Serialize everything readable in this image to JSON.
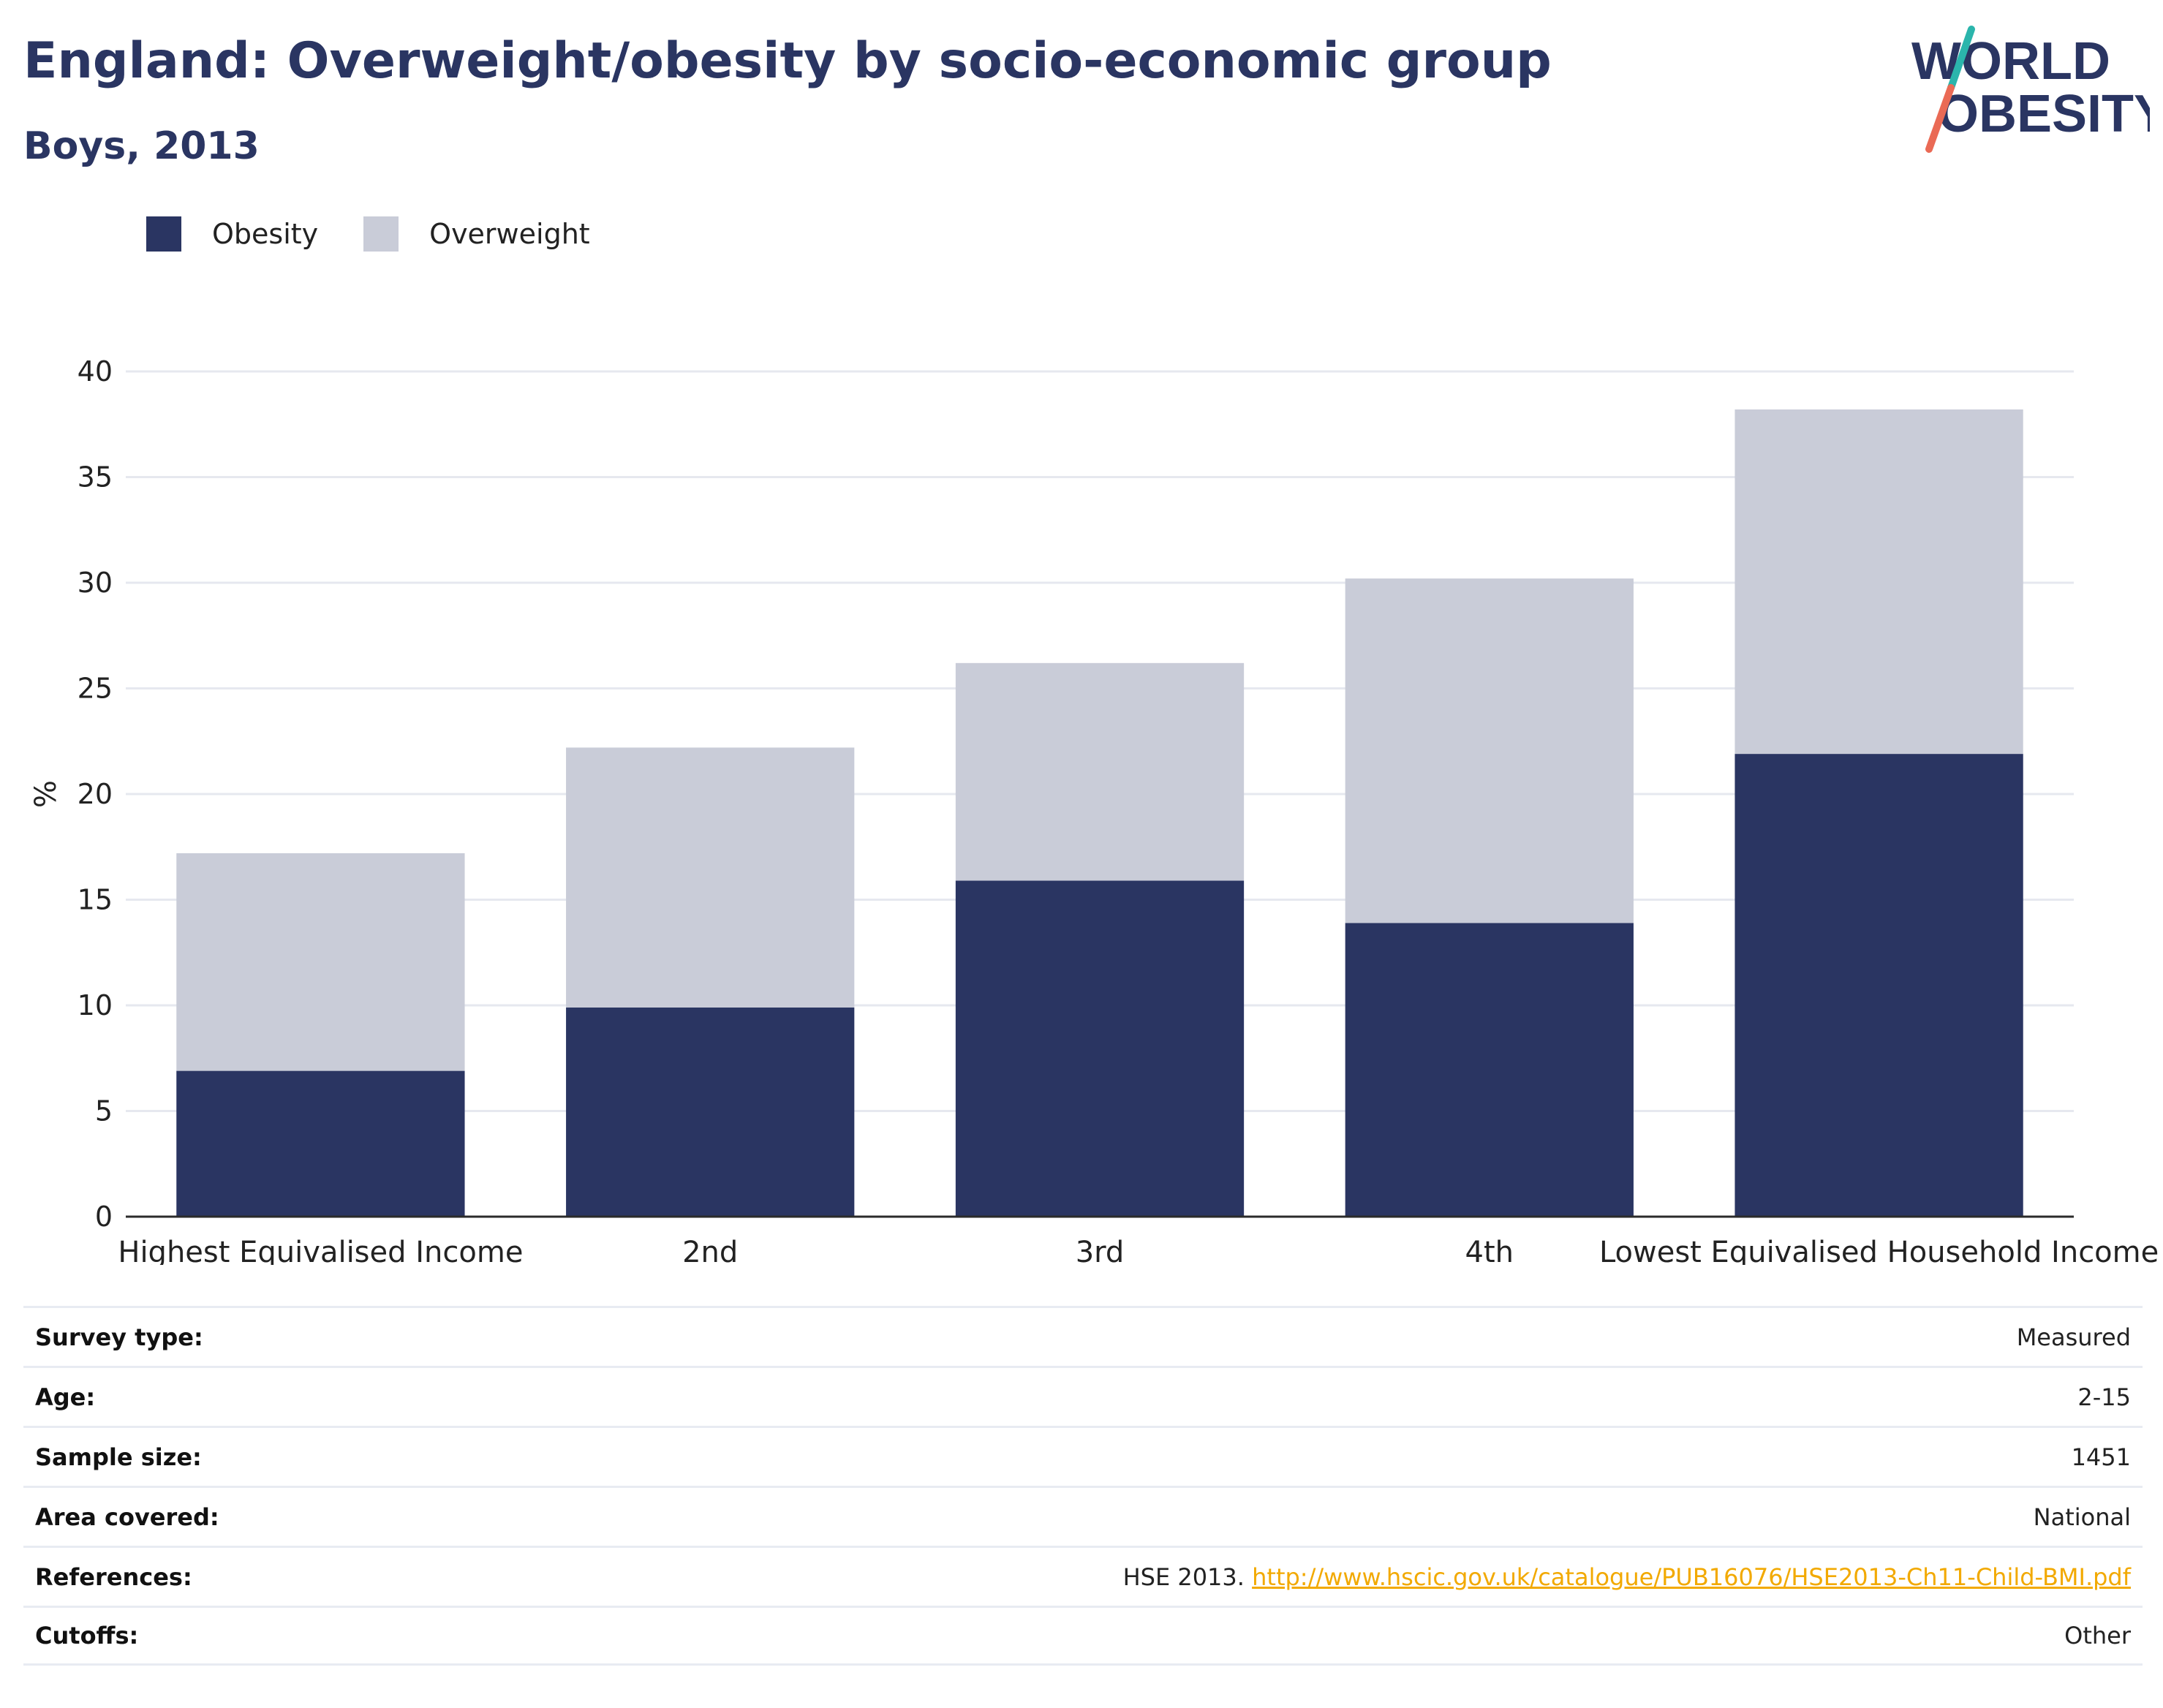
{
  "header": {
    "title": "England: Overweight/obesity by socio-economic group",
    "subtitle": "Boys, 2013"
  },
  "logo": {
    "line1": "WORLD",
    "line2": "OBESITY",
    "colors": {
      "text": "#2a3562",
      "slash_top": "#2bb5ac",
      "slash_bottom": "#ea6a55"
    }
  },
  "legend": {
    "items": [
      {
        "label": "Obesity",
        "color": "#2a3562"
      },
      {
        "label": "Overweight",
        "color": "#c9ccd8"
      }
    ]
  },
  "chart_data": {
    "type": "bar",
    "stacked": true,
    "categories": [
      "Highest Equivalised Income",
      "2nd",
      "3rd",
      "4th",
      "Lowest Equivalised Household Income"
    ],
    "series": [
      {
        "name": "Obesity",
        "values": [
          6.9,
          9.9,
          15.9,
          13.9,
          21.9
        ],
        "color": "#2a3562"
      },
      {
        "name": "Overweight",
        "values": [
          10.3,
          12.3,
          10.3,
          16.3,
          16.3
        ],
        "color": "#c9ccd8"
      }
    ],
    "title": "England: Overweight/obesity by socio-economic group",
    "subtitle": "Boys, 2013",
    "xlabel": "",
    "ylabel": "%",
    "ylim": [
      0,
      40
    ],
    "yticks": [
      0,
      5,
      10,
      15,
      20,
      25,
      30,
      35,
      40
    ],
    "grid": true,
    "legend_position": "top-left"
  },
  "meta": {
    "rows": [
      {
        "label": "Survey type:",
        "value": "Measured"
      },
      {
        "label": "Age:",
        "value": "2-15"
      },
      {
        "label": "Sample size:",
        "value": "1451"
      },
      {
        "label": "Area covered:",
        "value": "National"
      },
      {
        "label": "References:",
        "value": "HSE 2013.",
        "link": "http://www.hscic.gov.uk/catalogue/PUB16076/HSE2013-Ch11-Child-BMI.pdf"
      },
      {
        "label": "Cutoffs:",
        "value": "Other"
      }
    ]
  }
}
